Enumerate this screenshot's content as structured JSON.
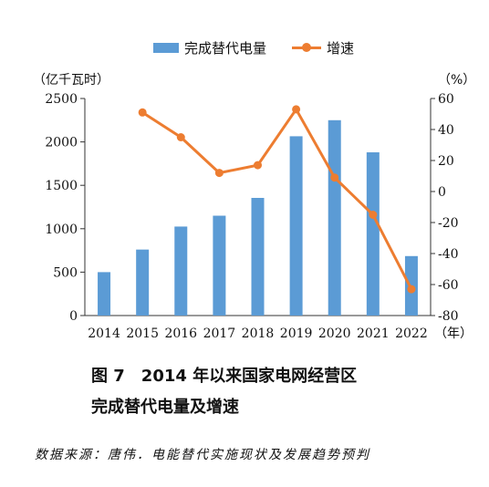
{
  "chart_data": {
    "type": "bar+line",
    "categories": [
      "2014",
      "2015",
      "2016",
      "2017",
      "2018",
      "2019",
      "2020",
      "2021",
      "2022"
    ],
    "series": [
      {
        "name": "完成替代电量",
        "type": "bar",
        "axis": "left",
        "values": [
          500,
          760,
          1025,
          1150,
          1355,
          2065,
          2250,
          1880,
          685
        ],
        "color": "#5b9bd5"
      },
      {
        "name": "增速",
        "type": "line",
        "axis": "right",
        "values": [
          null,
          51,
          35,
          12,
          17,
          53,
          9,
          -15,
          -63
        ],
        "color": "#ed7d31"
      }
    ],
    "y_left": {
      "label": "（亿千瓦时）",
      "min": 0,
      "max": 2500,
      "ticks": [
        "0",
        "500",
        "1000",
        "1500",
        "2000",
        "2500"
      ]
    },
    "y_right": {
      "label": "（%）",
      "min": -80,
      "max": 60,
      "ticks": [
        "-80",
        "-60",
        "-40",
        "-20",
        "0",
        "20",
        "40",
        "60"
      ]
    },
    "x_unit": "（年）",
    "legend_position": "top-center",
    "grid": false
  },
  "caption": {
    "line1": "图 7　2014 年以来国家电网经营区",
    "line2": "完成替代电量及增速"
  },
  "source": "数据来源：唐伟．电能替代实施现状及发展趋势预判"
}
